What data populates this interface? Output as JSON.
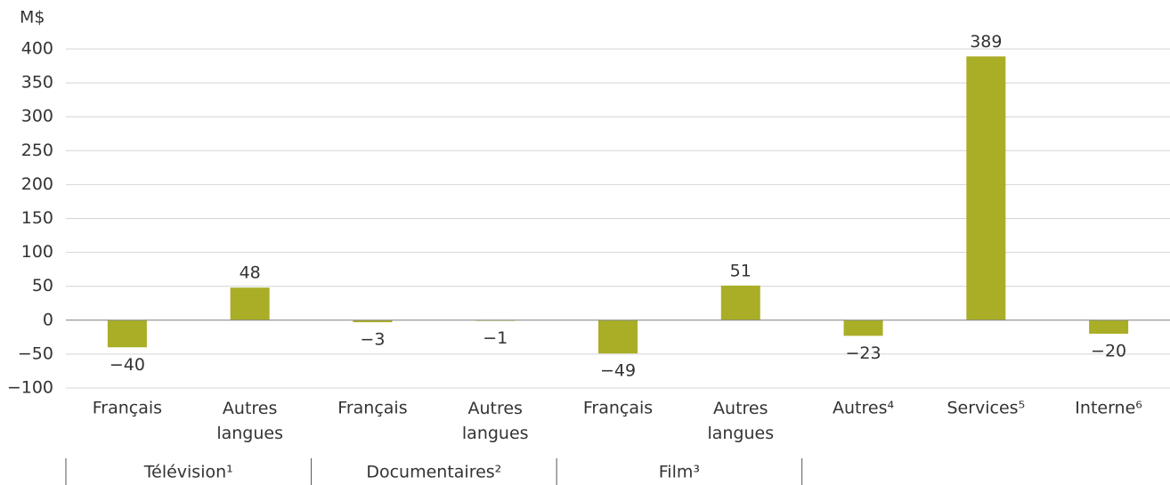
{
  "chart_data": {
    "type": "bar",
    "y_label": "M$",
    "categories": [
      "Français",
      "Autres langues",
      "Français",
      "Autres langues",
      "Français",
      "Autres langues",
      "Autres⁴",
      "Services⁵",
      "Interne⁶"
    ],
    "groups": [
      "Télévision¹",
      "Documentaires²",
      "Film³"
    ],
    "values": [
      -40,
      48,
      -3,
      -1,
      -49,
      51,
      -23,
      389,
      -20
    ],
    "value_labels": [
      "−40",
      "48",
      "−3",
      "−1",
      "−49",
      "51",
      "−23",
      "389",
      "−20"
    ],
    "color": "#a9ae26",
    "ylim": [
      -100,
      400
    ],
    "yticks": [
      {
        "value": -100,
        "label": "−100"
      },
      {
        "value": -50,
        "label": "−50"
      },
      0,
      50,
      100,
      150,
      200,
      250,
      300,
      350,
      400
    ],
    "grid": true
  }
}
